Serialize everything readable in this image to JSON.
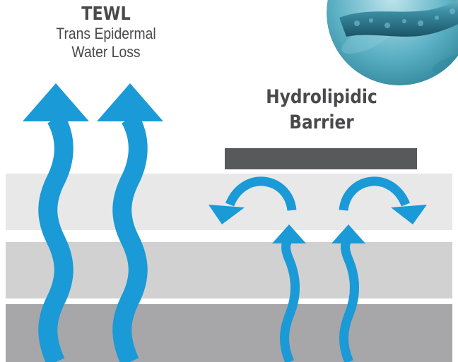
{
  "tewl": {
    "title": "TEWL",
    "subtitle_line1": "Trans Epidermal",
    "subtitle_line2": "Water Loss"
  },
  "barrier": {
    "title_line1": "Hydrolipidic",
    "title_line2": "Barrier"
  },
  "colors": {
    "arrow_blue": "#1a9ad6",
    "barrier_bar": "#58595b",
    "text": "#4a4a4c",
    "skin_layer_top": "#e8e8e9",
    "skin_layer_middle": "#d1d1d2",
    "skin_layer_bottom": "#a7a6a9"
  },
  "icons": [
    "bacteria-image",
    "wavy-up-arrow",
    "curved-deflect-arrow"
  ]
}
